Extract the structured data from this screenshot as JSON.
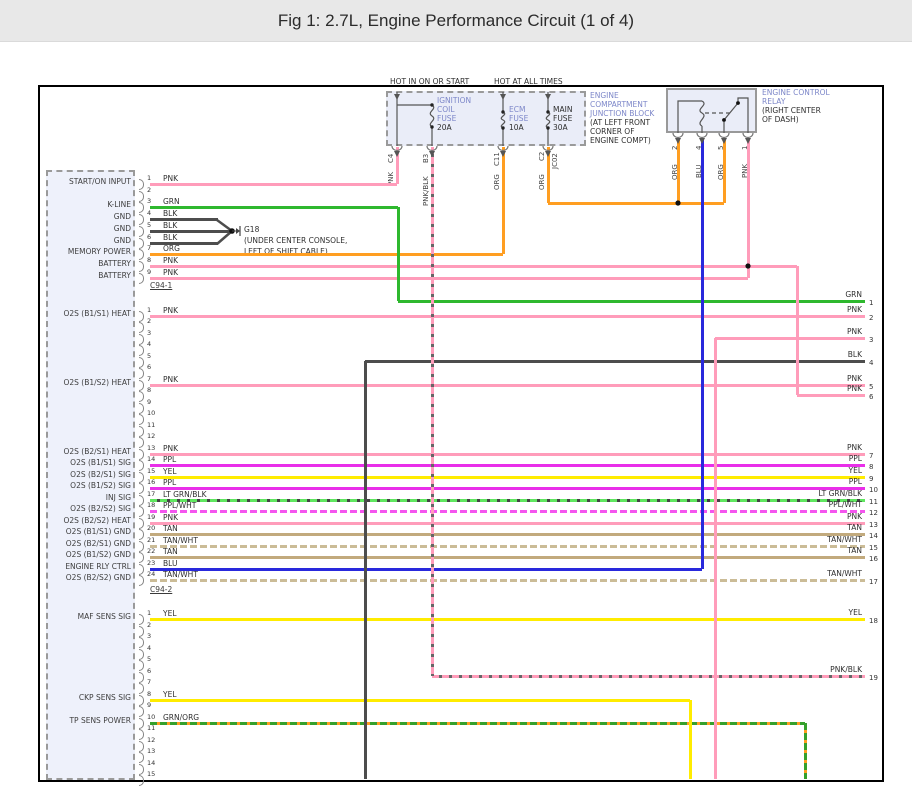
{
  "title": "Fig 1: 2.7L, Engine Performance Circuit (1 of 4)",
  "power_labels": {
    "ignition": "HOT IN ON OR START",
    "battery": "HOT AT ALL TIMES"
  },
  "junction_block": {
    "name_lines": [
      "ENGINE",
      "COMPARTMENT",
      "JUNCTION BLOCK"
    ],
    "location_lines": [
      "(AT LEFT FRONT",
      "CORNER OF",
      "ENGINE COMPT)"
    ],
    "fuses": [
      {
        "name_lines": [
          "IGNITION",
          "COIL",
          "FUSE"
        ],
        "amp": "20A"
      },
      {
        "name_lines": [
          "ECM",
          "FUSE"
        ],
        "amp": "10A"
      },
      {
        "name_lines": [
          "MAIN",
          "FUSE"
        ],
        "amp": "30A"
      }
    ],
    "connectors": [
      "C4",
      "B3",
      "C11",
      "C2",
      "JC02"
    ],
    "wire_labels": [
      "PNK",
      "PNK/BLK",
      "ORG",
      "ORG"
    ]
  },
  "relay": {
    "name_lines": [
      "ENGINE CONTROL",
      "RELAY"
    ],
    "location_lines": [
      "(RIGHT CENTER",
      "OF DASH)"
    ],
    "pins": [
      {
        "num": "2",
        "color": "ORG"
      },
      {
        "num": "4",
        "color": "BLU"
      },
      {
        "num": "5",
        "color": "ORG"
      },
      {
        "num": "1",
        "color": "PNK"
      }
    ]
  },
  "ground": {
    "id": "G18",
    "location_lines": [
      "(UNDER CENTER CONSOLE,",
      "LEFT OF SHIFT CABLE)"
    ]
  },
  "ecm_connectors": [
    {
      "label": "C94-1",
      "pins": [
        {
          "num": "1",
          "label": "START/ON INPUT",
          "wire": "PNK"
        },
        {
          "num": "2",
          "label": "",
          "wire": ""
        },
        {
          "num": "3",
          "label": "K-LINE",
          "wire": "GRN"
        },
        {
          "num": "4",
          "label": "GND",
          "wire": "BLK"
        },
        {
          "num": "5",
          "label": "GND",
          "wire": "BLK"
        },
        {
          "num": "6",
          "label": "GND",
          "wire": "BLK"
        },
        {
          "num": "7",
          "label": "MEMORY POWER",
          "wire": "ORG"
        },
        {
          "num": "8",
          "label": "BATTERY",
          "wire": "PNK"
        },
        {
          "num": "9",
          "label": "BATTERY",
          "wire": "PNK"
        }
      ]
    },
    {
      "label": "C94-2",
      "pins": [
        {
          "num": "1",
          "label": "O2S (B1/S1) HEAT",
          "wire": "PNK"
        },
        {
          "num": "2",
          "label": "",
          "wire": ""
        },
        {
          "num": "3",
          "label": "",
          "wire": ""
        },
        {
          "num": "4",
          "label": "",
          "wire": ""
        },
        {
          "num": "5",
          "label": "",
          "wire": ""
        },
        {
          "num": "6",
          "label": "",
          "wire": ""
        },
        {
          "num": "7",
          "label": "O2S (B1/S2) HEAT",
          "wire": "PNK"
        },
        {
          "num": "8",
          "label": "",
          "wire": ""
        },
        {
          "num": "9",
          "label": "",
          "wire": ""
        },
        {
          "num": "10",
          "label": "",
          "wire": ""
        },
        {
          "num": "11",
          "label": "",
          "wire": ""
        },
        {
          "num": "12",
          "label": "",
          "wire": ""
        },
        {
          "num": "13",
          "label": "O2S (B2/S1) HEAT",
          "wire": "PNK"
        },
        {
          "num": "14",
          "label": "O2S (B1/S1) SIG",
          "wire": "PPL"
        },
        {
          "num": "15",
          "label": "O2S (B2/S1) SIG",
          "wire": "YEL"
        },
        {
          "num": "16",
          "label": "O2S (B1/S2) SIG",
          "wire": "PPL"
        },
        {
          "num": "17",
          "label": "INJ SIG",
          "wire": "LT GRN/BLK"
        },
        {
          "num": "18",
          "label": "O2S (B2/S2) SIG",
          "wire": "PPL/WHT"
        },
        {
          "num": "19",
          "label": "O2S (B2/S2) HEAT",
          "wire": "PNK"
        },
        {
          "num": "20",
          "label": "O2S (B1/S1) GND",
          "wire": "TAN"
        },
        {
          "num": "21",
          "label": "O2S (B2/S1) GND",
          "wire": "TAN/WHT"
        },
        {
          "num": "22",
          "label": "O2S (B1/S2) GND",
          "wire": "TAN"
        },
        {
          "num": "23",
          "label": "ENGINE RLY CTRL",
          "wire": "BLU"
        },
        {
          "num": "24",
          "label": "O2S (B2/S2) GND",
          "wire": "TAN/WHT"
        }
      ]
    },
    {
      "label": "",
      "pins": [
        {
          "num": "1",
          "label": "MAF SENS SIG",
          "wire": "YEL"
        },
        {
          "num": "2",
          "label": "",
          "wire": ""
        },
        {
          "num": "3",
          "label": "",
          "wire": ""
        },
        {
          "num": "4",
          "label": "",
          "wire": ""
        },
        {
          "num": "5",
          "label": "",
          "wire": ""
        },
        {
          "num": "6",
          "label": "",
          "wire": ""
        },
        {
          "num": "7",
          "label": "",
          "wire": ""
        },
        {
          "num": "8",
          "label": "CKP SENS SIG",
          "wire": "YEL"
        },
        {
          "num": "9",
          "label": "",
          "wire": ""
        },
        {
          "num": "10",
          "label": "TP SENS POWER",
          "wire": "GRN/ORG"
        },
        {
          "num": "11",
          "label": "",
          "wire": ""
        },
        {
          "num": "12",
          "label": "",
          "wire": ""
        },
        {
          "num": "13",
          "label": "",
          "wire": ""
        },
        {
          "num": "14",
          "label": "",
          "wire": ""
        },
        {
          "num": "15",
          "label": "",
          "wire": ""
        }
      ]
    }
  ],
  "right_exits": [
    {
      "num": "1",
      "color": "GRN"
    },
    {
      "num": "2",
      "color": "PNK"
    },
    {
      "num": "3",
      "color": "PNK"
    },
    {
      "num": "4",
      "color": "BLK"
    },
    {
      "num": "5",
      "color": "PNK"
    },
    {
      "num": "6",
      "color": "PNK"
    },
    {
      "num": "7",
      "color": "PNK"
    },
    {
      "num": "8",
      "color": "PPL"
    },
    {
      "num": "9",
      "color": "YEL"
    },
    {
      "num": "10",
      "color": "PPL"
    },
    {
      "num": "11",
      "color": "LT GRN/BLK"
    },
    {
      "num": "12",
      "color": "PPL/WHT"
    },
    {
      "num": "13",
      "color": "PNK"
    },
    {
      "num": "14",
      "color": "TAN"
    },
    {
      "num": "15",
      "color": "TAN/WHT"
    },
    {
      "num": "16",
      "color": "TAN"
    },
    {
      "num": "17",
      "color": "TAN/WHT"
    },
    {
      "num": "18",
      "color": "YEL"
    },
    {
      "num": "19",
      "color": "PNK/BLK"
    }
  ],
  "colors": {
    "PNK": "#ff9cba",
    "GRN": "#2eb82e",
    "BLK": "#4d4d4d",
    "ORG": "#ff9e21",
    "PPL": "#e92fe9",
    "YEL": "#ffec00",
    "BLU": "#2929dc",
    "TAN": "#c2aa7d",
    "LT GRN/BLK": {
      "base": "#5fe65f",
      "stripe": "#444444"
    },
    "PPL/WHT": {
      "base": "#f455ee",
      "stripe": "#ffffff"
    },
    "TAN/WHT": {
      "base": "#cbbc97",
      "stripe": "#ffffff"
    },
    "GRN/ORG": {
      "base": "#35a02c",
      "stripe": "#ff9e21"
    },
    "PNK/BLK": {
      "base": "#ff9cba",
      "stripe": "#666666"
    }
  }
}
